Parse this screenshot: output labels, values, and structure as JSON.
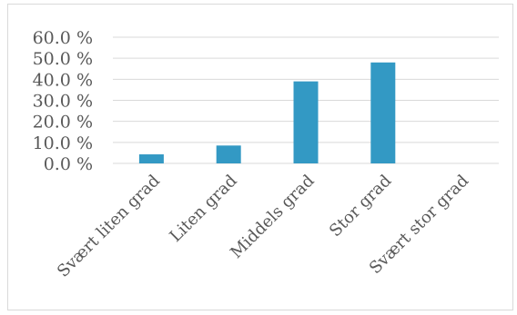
{
  "chart_data": {
    "type": "bar",
    "categories": [
      "Svært liten grad",
      "Liten grad",
      "Middels grad",
      "Stor grad",
      "Svært stor grad"
    ],
    "values": [
      4.3,
      8.5,
      39.0,
      48.0,
      0.0
    ],
    "ylim": [
      0,
      60
    ],
    "yticks": [
      0,
      10,
      20,
      30,
      40,
      50,
      60
    ],
    "ytick_labels": [
      "0.0 %",
      "10.0 %",
      "20.0 %",
      "30.0 %",
      "40.0 %",
      "50.0 %",
      "60.0 %"
    ],
    "bar_color": "#3399c4",
    "grid": true,
    "legend": "none",
    "title": "",
    "xlabel": "",
    "ylabel": ""
  }
}
